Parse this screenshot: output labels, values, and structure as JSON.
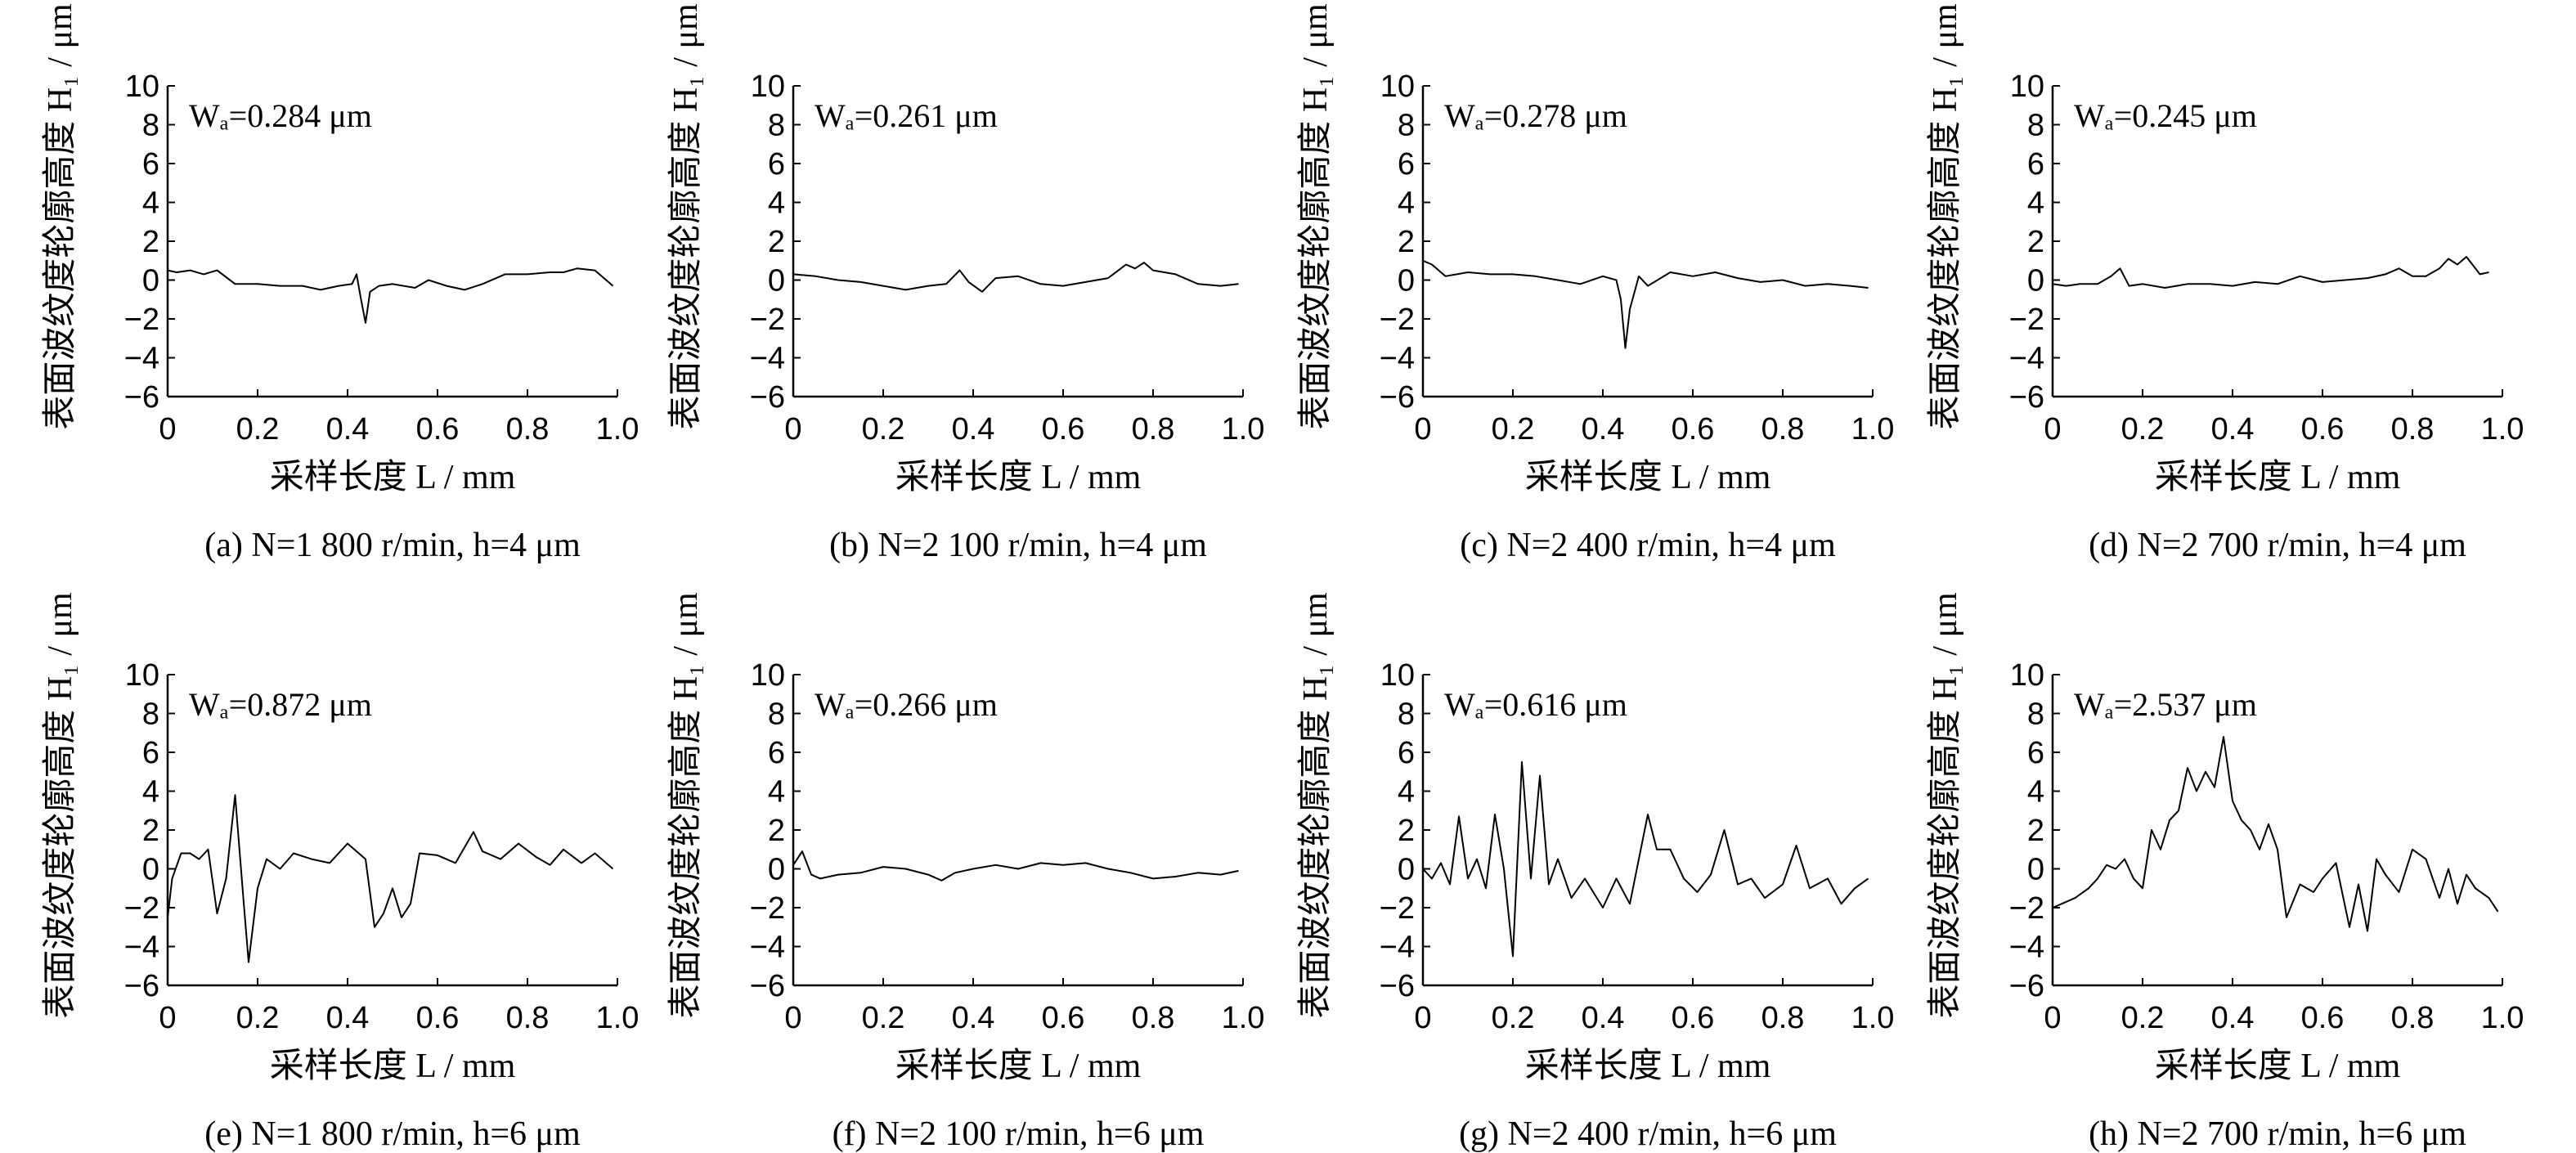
{
  "figure": {
    "ylabel": "表面波纹度轮廓高度 H₁ / μm",
    "xlabel": "采样长度 L / mm"
  },
  "chart_data": [
    {
      "type": "line",
      "panel": "(a)",
      "caption": "(a) N=1 800 r/min, h=4 μm",
      "annotation": "Wₐ=0.284 μm",
      "xlabel": "采样长度 L / mm",
      "ylabel": "表面波纹度轮廓高度 H₁ / μm",
      "xlim": [
        0,
        1.0
      ],
      "ylim": [
        -6,
        10
      ],
      "xticks": [
        0,
        0.2,
        0.4,
        0.6,
        0.8,
        1.0
      ],
      "yticks": [
        -6,
        -4,
        -2,
        0,
        2,
        4,
        6,
        8,
        10
      ],
      "series": [
        {
          "x": [
            0,
            0.02,
            0.05,
            0.08,
            0.11,
            0.15,
            0.2,
            0.25,
            0.3,
            0.34,
            0.38,
            0.41,
            0.42,
            0.43,
            0.44,
            0.45,
            0.47,
            0.5,
            0.55,
            0.58,
            0.62,
            0.66,
            0.7,
            0.75,
            0.8,
            0.85,
            0.88,
            0.91,
            0.95,
            0.99
          ],
          "y": [
            0.5,
            0.4,
            0.5,
            0.3,
            0.5,
            -0.2,
            -0.2,
            -0.3,
            -0.3,
            -0.5,
            -0.3,
            -0.2,
            0.3,
            -1.0,
            -2.2,
            -0.6,
            -0.3,
            -0.2,
            -0.4,
            0.0,
            -0.3,
            -0.5,
            -0.2,
            0.3,
            0.3,
            0.4,
            0.4,
            0.6,
            0.5,
            -0.3
          ]
        }
      ]
    },
    {
      "type": "line",
      "panel": "(b)",
      "caption": "(b) N=2 100 r/min, h=4 μm",
      "annotation": "Wₐ=0.261 μm",
      "xlabel": "采样长度 L / mm",
      "ylabel": "表面波纹度轮廓高度 H₁ / μm",
      "xlim": [
        0,
        1.0
      ],
      "ylim": [
        -6,
        10
      ],
      "xticks": [
        0,
        0.2,
        0.4,
        0.6,
        0.8,
        1.0
      ],
      "yticks": [
        -6,
        -4,
        -2,
        0,
        2,
        4,
        6,
        8,
        10
      ],
      "series": [
        {
          "x": [
            0,
            0.05,
            0.1,
            0.15,
            0.2,
            0.25,
            0.3,
            0.34,
            0.37,
            0.39,
            0.42,
            0.45,
            0.5,
            0.55,
            0.6,
            0.65,
            0.7,
            0.74,
            0.76,
            0.78,
            0.8,
            0.85,
            0.9,
            0.95,
            0.99
          ],
          "y": [
            0.3,
            0.2,
            0.0,
            -0.1,
            -0.3,
            -0.5,
            -0.3,
            -0.2,
            0.5,
            -0.1,
            -0.6,
            0.1,
            0.2,
            -0.2,
            -0.3,
            -0.1,
            0.1,
            0.8,
            0.6,
            0.9,
            0.5,
            0.3,
            -0.2,
            -0.3,
            -0.2
          ]
        }
      ]
    },
    {
      "type": "line",
      "panel": "(c)",
      "caption": "(c) N=2 400 r/min, h=4 μm",
      "annotation": "Wₐ=0.278 μm",
      "xlabel": "采样长度 L / mm",
      "ylabel": "表面波纹度轮廓高度 H₁ / μm",
      "xlim": [
        0,
        1.0
      ],
      "ylim": [
        -6,
        10
      ],
      "xticks": [
        0,
        0.2,
        0.4,
        0.6,
        0.8,
        1.0
      ],
      "yticks": [
        -6,
        -4,
        -2,
        0,
        2,
        4,
        6,
        8,
        10
      ],
      "series": [
        {
          "x": [
            0,
            0.02,
            0.05,
            0.1,
            0.15,
            0.2,
            0.25,
            0.3,
            0.35,
            0.4,
            0.43,
            0.44,
            0.45,
            0.46,
            0.48,
            0.5,
            0.55,
            0.6,
            0.65,
            0.7,
            0.75,
            0.8,
            0.85,
            0.9,
            0.95,
            0.99
          ],
          "y": [
            1.0,
            0.8,
            0.2,
            0.4,
            0.3,
            0.3,
            0.2,
            0.0,
            -0.2,
            0.2,
            0.0,
            -1.0,
            -3.5,
            -1.5,
            0.2,
            -0.3,
            0.4,
            0.2,
            0.4,
            0.1,
            -0.1,
            0.0,
            -0.3,
            -0.2,
            -0.3,
            -0.4
          ]
        }
      ]
    },
    {
      "type": "line",
      "panel": "(d)",
      "caption": "(d) N=2 700 r/min, h=4 μm",
      "annotation": "Wₐ=0.245 μm",
      "xlabel": "采样长度 L / mm",
      "ylabel": "表面波纹度轮廓高度 H₁ / μm",
      "xlim": [
        0,
        1.0
      ],
      "ylim": [
        -6,
        10
      ],
      "xticks": [
        0,
        0.2,
        0.4,
        0.6,
        0.8,
        1.0
      ],
      "yticks": [
        -6,
        -4,
        -2,
        0,
        2,
        4,
        6,
        8,
        10
      ],
      "series": [
        {
          "x": [
            0,
            0.03,
            0.06,
            0.1,
            0.13,
            0.15,
            0.17,
            0.2,
            0.25,
            0.3,
            0.35,
            0.4,
            0.45,
            0.5,
            0.55,
            0.6,
            0.65,
            0.7,
            0.74,
            0.77,
            0.8,
            0.83,
            0.86,
            0.88,
            0.9,
            0.92,
            0.95,
            0.97
          ],
          "y": [
            -0.2,
            -0.3,
            -0.2,
            -0.2,
            0.2,
            0.6,
            -0.3,
            -0.2,
            -0.4,
            -0.2,
            -0.2,
            -0.3,
            -0.1,
            -0.2,
            0.2,
            -0.1,
            0.0,
            0.1,
            0.3,
            0.6,
            0.2,
            0.2,
            0.6,
            1.1,
            0.8,
            1.2,
            0.3,
            0.4
          ]
        }
      ]
    },
    {
      "type": "line",
      "panel": "(e)",
      "caption": "(e) N=1 800 r/min, h=6 μm",
      "annotation": "Wₐ=0.872 μm",
      "xlabel": "采样长度 L / mm",
      "ylabel": "表面波纹度轮廓高度 H₁ / μm",
      "xlim": [
        0,
        1.0
      ],
      "ylim": [
        -6,
        10
      ],
      "xticks": [
        0,
        0.2,
        0.4,
        0.6,
        0.8,
        1.0
      ],
      "yticks": [
        -6,
        -4,
        -2,
        0,
        2,
        4,
        6,
        8,
        10
      ],
      "series": [
        {
          "x": [
            0,
            0.01,
            0.03,
            0.05,
            0.07,
            0.09,
            0.11,
            0.13,
            0.15,
            0.17,
            0.18,
            0.2,
            0.22,
            0.25,
            0.28,
            0.32,
            0.36,
            0.4,
            0.44,
            0.46,
            0.48,
            0.5,
            0.52,
            0.54,
            0.56,
            0.6,
            0.64,
            0.68,
            0.7,
            0.74,
            0.78,
            0.82,
            0.85,
            0.88,
            0.92,
            0.95,
            0.99
          ],
          "y": [
            -2.5,
            -0.5,
            0.8,
            0.8,
            0.5,
            1.0,
            -2.3,
            -0.5,
            3.8,
            -2.0,
            -4.8,
            -1.0,
            0.5,
            0.0,
            0.8,
            0.5,
            0.3,
            1.3,
            0.5,
            -3.0,
            -2.3,
            -1.0,
            -2.5,
            -1.8,
            0.8,
            0.7,
            0.3,
            1.9,
            0.9,
            0.5,
            1.3,
            0.6,
            0.2,
            1.0,
            0.3,
            0.8,
            0.0
          ]
        }
      ]
    },
    {
      "type": "line",
      "panel": "(f)",
      "caption": "(f) N=2 100 r/min, h=6 μm",
      "annotation": "Wₐ=0.266 μm",
      "xlabel": "采样长度 L / mm",
      "ylabel": "表面波纹度轮廓高度 H₁ / μm",
      "xlim": [
        0,
        1.0
      ],
      "ylim": [
        -6,
        10
      ],
      "xticks": [
        0,
        0.2,
        0.4,
        0.6,
        0.8,
        1.0
      ],
      "yticks": [
        -6,
        -4,
        -2,
        0,
        2,
        4,
        6,
        8,
        10
      ],
      "series": [
        {
          "x": [
            0,
            0.02,
            0.04,
            0.06,
            0.1,
            0.15,
            0.2,
            0.25,
            0.3,
            0.33,
            0.36,
            0.4,
            0.45,
            0.5,
            0.55,
            0.6,
            0.65,
            0.7,
            0.75,
            0.8,
            0.85,
            0.9,
            0.95,
            0.99
          ],
          "y": [
            0.2,
            0.9,
            -0.3,
            -0.5,
            -0.3,
            -0.2,
            0.1,
            0.0,
            -0.3,
            -0.6,
            -0.2,
            0.0,
            0.2,
            0.0,
            0.3,
            0.2,
            0.3,
            0.0,
            -0.2,
            -0.5,
            -0.4,
            -0.2,
            -0.3,
            -0.1
          ]
        }
      ]
    },
    {
      "type": "line",
      "panel": "(g)",
      "caption": "(g) N=2 400 r/min, h=6 μm",
      "annotation": "Wₐ=0.616 μm",
      "xlabel": "采样长度 L / mm",
      "ylabel": "表面波纹度轮廓高度 H₁ / μm",
      "xlim": [
        0,
        1.0
      ],
      "ylim": [
        -6,
        10
      ],
      "xticks": [
        0,
        0.2,
        0.4,
        0.6,
        0.8,
        1.0
      ],
      "yticks": [
        -6,
        -4,
        -2,
        0,
        2,
        4,
        6,
        8,
        10
      ],
      "series": [
        {
          "x": [
            0,
            0.02,
            0.04,
            0.06,
            0.08,
            0.1,
            0.12,
            0.14,
            0.16,
            0.18,
            0.2,
            0.22,
            0.24,
            0.26,
            0.28,
            0.3,
            0.33,
            0.36,
            0.4,
            0.43,
            0.46,
            0.5,
            0.52,
            0.55,
            0.58,
            0.61,
            0.64,
            0.67,
            0.7,
            0.73,
            0.76,
            0.8,
            0.83,
            0.86,
            0.9,
            0.93,
            0.96,
            0.99
          ],
          "y": [
            0.0,
            -0.5,
            0.3,
            -0.8,
            2.7,
            -0.5,
            0.5,
            -1.0,
            2.8,
            0.0,
            -4.5,
            5.5,
            -0.5,
            4.8,
            -0.8,
            0.5,
            -1.5,
            -0.5,
            -2.0,
            -0.5,
            -1.8,
            2.8,
            1.0,
            1.0,
            -0.5,
            -1.2,
            -0.3,
            2.0,
            -0.8,
            -0.5,
            -1.5,
            -0.8,
            1.2,
            -1.0,
            -0.5,
            -1.8,
            -1.0,
            -0.5
          ]
        }
      ]
    },
    {
      "type": "line",
      "panel": "(h)",
      "caption": "(h) N=2 700 r/min, h=6 μm",
      "annotation": "Wₐ=2.537 μm",
      "xlabel": "采样长度 L / mm",
      "ylabel": "表面波纹度轮廓高度 H₁ / μm",
      "xlim": [
        0,
        1.0
      ],
      "ylim": [
        -6,
        10
      ],
      "xticks": [
        0,
        0.2,
        0.4,
        0.6,
        0.8,
        1.0
      ],
      "yticks": [
        -6,
        -4,
        -2,
        0,
        2,
        4,
        6,
        8,
        10
      ],
      "series": [
        {
          "x": [
            0,
            0.02,
            0.05,
            0.08,
            0.1,
            0.12,
            0.14,
            0.16,
            0.18,
            0.2,
            0.22,
            0.24,
            0.26,
            0.28,
            0.3,
            0.32,
            0.34,
            0.36,
            0.38,
            0.4,
            0.42,
            0.44,
            0.46,
            0.48,
            0.5,
            0.52,
            0.55,
            0.58,
            0.6,
            0.63,
            0.66,
            0.68,
            0.7,
            0.72,
            0.74,
            0.77,
            0.8,
            0.83,
            0.86,
            0.88,
            0.9,
            0.92,
            0.94,
            0.97,
            0.99
          ],
          "y": [
            -2.0,
            -1.8,
            -1.5,
            -1.0,
            -0.5,
            0.2,
            0.0,
            0.5,
            -0.5,
            -1.0,
            2.0,
            1.0,
            2.5,
            3.0,
            5.2,
            4.0,
            5.0,
            4.2,
            6.8,
            3.5,
            2.5,
            2.0,
            1.0,
            2.3,
            1.0,
            -2.5,
            -0.8,
            -1.2,
            -0.5,
            0.3,
            -3.0,
            -0.8,
            -3.2,
            0.5,
            -0.3,
            -1.2,
            1.0,
            0.5,
            -1.5,
            0.0,
            -1.8,
            -0.3,
            -1.0,
            -1.5,
            -2.2
          ]
        }
      ]
    }
  ]
}
